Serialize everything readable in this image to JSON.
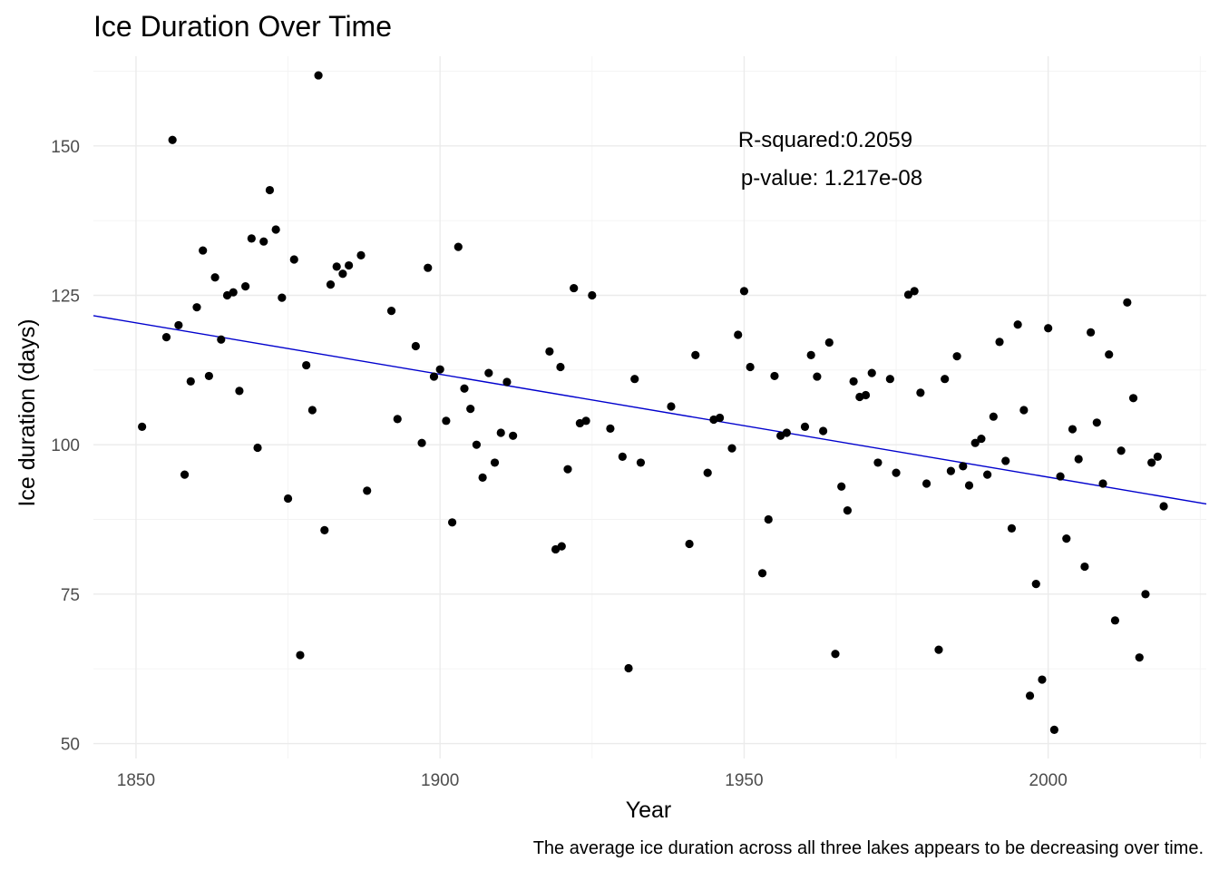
{
  "chart_data": {
    "type": "scatter",
    "title": "Ice Duration Over Time",
    "xlabel": "Year",
    "ylabel": "Ice duration (days)",
    "caption": "The average ice duration across all three lakes appears to be decreasing over time.",
    "annotation": {
      "line1": "R-squared:0.2059",
      "line2": "p-value: 1.217e-08"
    },
    "xlim": [
      1843,
      2026
    ],
    "ylim": [
      47.5,
      165
    ],
    "x_ticks": [
      1850,
      1900,
      1950,
      2000
    ],
    "x_tick_labels": [
      "1850",
      "1900",
      "1950",
      "2000"
    ],
    "y_ticks": [
      50,
      75,
      100,
      125,
      150
    ],
    "y_tick_labels": [
      "50",
      "75",
      "100",
      "125",
      "150"
    ],
    "grid": true,
    "legend": "none",
    "colors": {
      "points": "#000000",
      "trend": "#0000cd"
    },
    "trend_line": {
      "x": [
        1843,
        2026
      ],
      "y": [
        121.6,
        90.1
      ]
    },
    "series": [
      {
        "points": [
          [
            1851,
            103
          ],
          [
            1855,
            118
          ],
          [
            1856,
            151
          ],
          [
            1857,
            120
          ],
          [
            1858,
            95
          ],
          [
            1859,
            110.6
          ],
          [
            1860,
            123
          ],
          [
            1861,
            132.5
          ],
          [
            1862,
            111.5
          ],
          [
            1863,
            128
          ],
          [
            1864,
            117.6
          ],
          [
            1865,
            125
          ],
          [
            1866,
            125.5
          ],
          [
            1867,
            109
          ],
          [
            1868,
            126.5
          ],
          [
            1869,
            134.5
          ],
          [
            1870,
            99.5
          ],
          [
            1871,
            134
          ],
          [
            1872,
            142.6
          ],
          [
            1873,
            136
          ],
          [
            1874,
            124.6
          ],
          [
            1875,
            91
          ],
          [
            1876,
            131
          ],
          [
            1877,
            64.8
          ],
          [
            1878,
            113.3
          ],
          [
            1879,
            105.8
          ],
          [
            1880,
            161.8
          ],
          [
            1881,
            85.7
          ],
          [
            1882,
            126.8
          ],
          [
            1883,
            129.8
          ],
          [
            1884,
            128.6
          ],
          [
            1885,
            130
          ],
          [
            1887,
            131.7
          ],
          [
            1888,
            92.3
          ],
          [
            1892,
            122.4
          ],
          [
            1893,
            104.3
          ],
          [
            1896,
            116.5
          ],
          [
            1897,
            100.3
          ],
          [
            1898,
            129.6
          ],
          [
            1899,
            111.4
          ],
          [
            1900,
            112.6
          ],
          [
            1901,
            104
          ],
          [
            1902,
            87
          ],
          [
            1903,
            133.1
          ],
          [
            1904,
            109.4
          ],
          [
            1905,
            106
          ],
          [
            1906,
            100
          ],
          [
            1907,
            94.5
          ],
          [
            1908,
            112
          ],
          [
            1909,
            97
          ],
          [
            1910,
            102
          ],
          [
            1911,
            110.5
          ],
          [
            1912,
            101.5
          ],
          [
            1918,
            115.6
          ],
          [
            1919,
            82.5
          ],
          [
            1919.8,
            113
          ],
          [
            1920,
            83
          ],
          [
            1921,
            95.9
          ],
          [
            1922,
            126.2
          ],
          [
            1923,
            103.6
          ],
          [
            1924,
            104
          ],
          [
            1925,
            125
          ],
          [
            1928,
            102.7
          ],
          [
            1930,
            98
          ],
          [
            1931,
            62.6
          ],
          [
            1932,
            111
          ],
          [
            1933,
            97
          ],
          [
            1938,
            106.4
          ],
          [
            1941,
            83.4
          ],
          [
            1942,
            115
          ],
          [
            1944,
            95.3
          ],
          [
            1945,
            104.2
          ],
          [
            1946,
            104.5
          ],
          [
            1948,
            99.4
          ],
          [
            1949,
            118.4
          ],
          [
            1950,
            125.7
          ],
          [
            1951,
            113
          ],
          [
            1953,
            78.5
          ],
          [
            1954,
            87.5
          ],
          [
            1955,
            111.5
          ],
          [
            1956,
            101.5
          ],
          [
            1957,
            102
          ],
          [
            1960,
            103
          ],
          [
            1961,
            115
          ],
          [
            1962,
            111.4
          ],
          [
            1963,
            102.3
          ],
          [
            1964,
            117.1
          ],
          [
            1965,
            65
          ],
          [
            1966,
            93
          ],
          [
            1967,
            89
          ],
          [
            1968,
            110.6
          ],
          [
            1969,
            108
          ],
          [
            1970,
            108.3
          ],
          [
            1971,
            112
          ],
          [
            1972,
            97
          ],
          [
            1974,
            111
          ],
          [
            1975,
            95.3
          ],
          [
            1977,
            125.1
          ],
          [
            1978,
            125.7
          ],
          [
            1979,
            108.7
          ],
          [
            1980,
            93.5
          ],
          [
            1982,
            65.7
          ],
          [
            1983,
            111
          ],
          [
            1984,
            95.6
          ],
          [
            1985,
            114.8
          ],
          [
            1986,
            96.4
          ],
          [
            1987,
            93.2
          ],
          [
            1988,
            100.3
          ],
          [
            1989,
            101
          ],
          [
            1990,
            95
          ],
          [
            1991,
            104.7
          ],
          [
            1992,
            117.2
          ],
          [
            1993,
            97.3
          ],
          [
            1994,
            86
          ],
          [
            1995,
            120.1
          ],
          [
            1996,
            105.8
          ],
          [
            1997,
            58
          ],
          [
            1998,
            76.7
          ],
          [
            1999,
            60.7
          ],
          [
            2000,
            119.5
          ],
          [
            2001,
            52.3
          ],
          [
            2002,
            94.7
          ],
          [
            2003,
            84.3
          ],
          [
            2004,
            102.6
          ],
          [
            2005,
            97.6
          ],
          [
            2006,
            79.6
          ],
          [
            2007,
            118.8
          ],
          [
            2008,
            103.7
          ],
          [
            2009,
            93.5
          ],
          [
            2010,
            115.1
          ],
          [
            2011,
            70.6
          ],
          [
            2012,
            99
          ],
          [
            2013,
            123.8
          ],
          [
            2014,
            107.8
          ],
          [
            2015,
            64.4
          ],
          [
            2016,
            75
          ],
          [
            2017,
            97
          ],
          [
            2018,
            98
          ],
          [
            2019,
            89.7
          ]
        ]
      }
    ]
  }
}
